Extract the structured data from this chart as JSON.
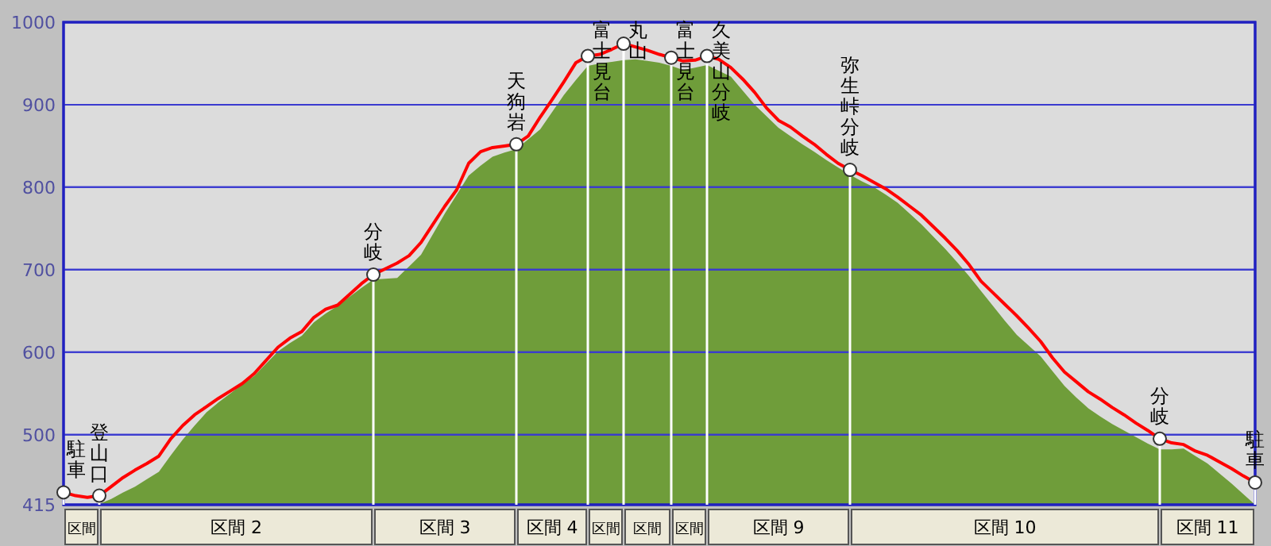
{
  "chart_data": [
    {
      "type": "area",
      "categories": [
        null,
        null,
        null,
        null,
        null,
        null,
        null,
        null,
        null,
        null,
        null,
        null,
        null,
        null,
        null,
        null,
        null,
        null,
        null,
        null,
        null,
        null,
        null,
        null,
        null,
        null,
        null,
        null,
        null,
        null,
        null,
        null,
        null,
        null,
        null,
        null,
        null,
        null,
        null,
        null,
        null,
        null,
        null,
        null,
        null,
        null,
        null,
        null,
        null,
        null,
        null,
        null,
        null,
        null,
        null,
        null,
        null,
        null,
        null,
        null,
        null,
        null,
        null,
        null,
        null,
        null,
        null,
        null,
        null,
        null,
        null,
        null,
        null,
        null,
        null,
        null,
        null,
        null,
        null,
        null,
        null,
        null,
        null,
        null,
        null,
        null,
        null,
        null,
        null,
        null,
        null,
        null,
        null,
        null,
        null,
        null,
        null,
        null,
        null,
        null,
        null
      ],
      "series": [
        {
          "color": "#6f9d3a",
          "values": [
            415,
            415,
            415,
            416,
            422,
            430,
            437,
            446,
            455,
            475,
            494,
            511,
            527,
            539,
            550,
            561,
            571,
            586,
            601,
            611,
            620,
            636,
            647,
            656,
            667,
            678,
            688,
            689,
            690,
            704,
            718,
            743,
            768,
            791,
            814,
            826,
            837,
            842,
            846,
            858,
            870,
            891,
            912,
            930,
            947,
            950,
            952,
            954,
            955,
            953,
            951,
            947,
            942,
            945,
            948,
            941,
            934,
            917,
            900,
            886,
            872,
            862,
            852,
            843,
            833,
            824,
            815,
            807,
            800,
            791,
            781,
            768,
            755,
            740,
            725,
            709,
            692,
            674,
            656,
            638,
            621,
            608,
            595,
            577,
            559,
            545,
            532,
            522,
            513,
            505,
            497,
            489,
            482,
            482,
            483,
            474,
            465,
            453,
            441,
            428,
            415
          ]
        }
      ],
      "ylim": [
        415,
        1000
      ],
      "yticks": [
        415,
        500,
        600,
        700,
        800,
        900,
        1000
      ],
      "tick_labels": "y",
      "grid": "y"
    },
    {
      "type": "line",
      "categories": [
        null,
        null,
        null,
        null,
        null,
        null,
        null,
        null,
        null,
        null,
        null,
        null,
        null,
        null,
        null,
        null,
        null,
        null,
        null,
        null,
        null,
        null,
        null,
        null,
        null,
        null,
        null,
        null,
        null,
        null,
        null,
        null,
        null,
        null,
        null,
        null,
        null,
        null,
        null,
        null,
        null,
        null,
        null,
        null,
        null,
        null,
        null,
        null,
        null,
        null,
        null,
        null,
        null,
        null,
        null,
        null,
        null,
        null,
        null,
        null,
        null,
        null,
        null,
        null,
        null,
        null,
        null,
        null,
        null,
        null,
        null,
        null,
        null,
        null,
        null,
        null,
        null,
        null,
        null,
        null,
        null,
        null,
        null,
        null,
        null,
        null,
        null,
        null,
        null,
        null,
        null,
        null,
        null,
        null,
        null,
        null,
        null,
        null,
        null,
        null,
        null
      ],
      "series": [
        {
          "color": "#ff0000",
          "values": [
            430,
            426,
            424,
            426,
            437,
            448,
            457,
            465,
            474,
            495,
            511,
            524,
            534,
            544,
            553,
            562,
            574,
            590,
            606,
            617,
            625,
            642,
            652,
            657,
            670,
            683,
            694,
            701,
            708,
            717,
            733,
            755,
            777,
            797,
            829,
            843,
            848,
            850,
            852,
            862,
            885,
            906,
            928,
            951,
            959,
            961,
            967,
            974,
            970,
            966,
            961,
            957,
            953,
            954,
            959,
            955,
            945,
            931,
            915,
            896,
            881,
            873,
            862,
            852,
            840,
            829,
            821,
            814,
            806,
            798,
            788,
            777,
            766,
            752,
            738,
            723,
            706,
            686,
            672,
            658,
            644,
            629,
            613,
            593,
            576,
            564,
            552,
            543,
            533,
            524,
            514,
            505,
            495,
            490,
            488,
            480,
            475,
            467,
            459,
            450,
            442
          ],
          "value_labels": [
            "駐車",
            null,
            null,
            "登山口",
            null,
            null,
            null,
            null,
            null,
            null,
            null,
            null,
            null,
            null,
            null,
            null,
            null,
            null,
            null,
            null,
            null,
            null,
            null,
            null,
            null,
            null,
            "分岐",
            null,
            null,
            null,
            null,
            null,
            null,
            null,
            null,
            null,
            null,
            null,
            "天狗岩",
            null,
            null,
            null,
            null,
            null,
            "富士見台",
            null,
            null,
            "丸山",
            null,
            null,
            null,
            "富士見台",
            null,
            null,
            "久美山分岐",
            null,
            null,
            null,
            null,
            null,
            null,
            null,
            null,
            null,
            null,
            null,
            "弥生峠分岐",
            null,
            null,
            null,
            null,
            null,
            null,
            null,
            null,
            null,
            null,
            null,
            null,
            null,
            null,
            null,
            null,
            null,
            null,
            null,
            null,
            null,
            null,
            null,
            null,
            null,
            "分岐",
            null,
            null,
            null,
            null,
            null,
            null,
            null,
            "駐車"
          ]
        }
      ],
      "ylim": [
        415,
        1000
      ],
      "tick_labels": false,
      "grid": true
    },
    {
      "type": "other",
      "annotations": [
        "区間",
        "区間 2",
        "区間 3",
        "区間 4",
        "区間",
        "区間",
        "区間",
        "区間 9",
        "区間 10",
        "区間 11"
      ]
    }
  ]
}
